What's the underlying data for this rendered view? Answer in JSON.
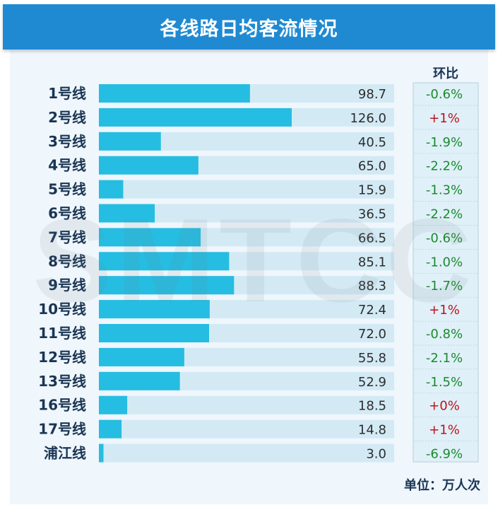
{
  "header": {
    "title": "各线路日均客流情况"
  },
  "watermark": "SMTCC",
  "table": {
    "change_header": "环比",
    "unit_label": "单位：万人次"
  },
  "colors": {
    "bar": "#25bde2",
    "bar_track": "#d3eaf5",
    "label": "#1a3553",
    "value": "#2d2d2d",
    "negative": "#1b8a2e",
    "positive": "#c1121c",
    "change_box_bg": "#dff0f8",
    "change_box_border": "#b8cdd9"
  },
  "chart_data": {
    "type": "bar",
    "orientation": "horizontal",
    "categories": [
      "1号线",
      "2号线",
      "3号线",
      "4号线",
      "5号线",
      "6号线",
      "7号线",
      "8号线",
      "9号线",
      "10号线",
      "11号线",
      "12号线",
      "13号线",
      "16号线",
      "17号线",
      "浦江线"
    ],
    "values": [
      98.7,
      126.0,
      40.5,
      65.0,
      15.9,
      36.5,
      66.5,
      85.1,
      88.3,
      72.4,
      72.0,
      55.8,
      52.9,
      18.5,
      14.8,
      3.0
    ],
    "value_labels": [
      "98.7",
      "126.0",
      "40.5",
      "65.0",
      "15.9",
      "36.5",
      "66.5",
      "85.1",
      "88.3",
      "72.4",
      "72.0",
      "55.8",
      "52.9",
      "18.5",
      "14.8",
      "3.0"
    ],
    "changes": [
      "-0.6%",
      "+1%",
      "-1.9%",
      "-2.2%",
      "-1.3%",
      "-2.2%",
      "-0.6%",
      "-1.0%",
      "-1.7%",
      "+1%",
      "-0.8%",
      "-2.1%",
      "-1.5%",
      "+0%",
      "+1%",
      "-6.9%"
    ],
    "title": "各线路日均客流情况",
    "unit": "单位：万人次",
    "xlim": [
      0,
      126
    ],
    "grid": false,
    "legend": "none"
  }
}
